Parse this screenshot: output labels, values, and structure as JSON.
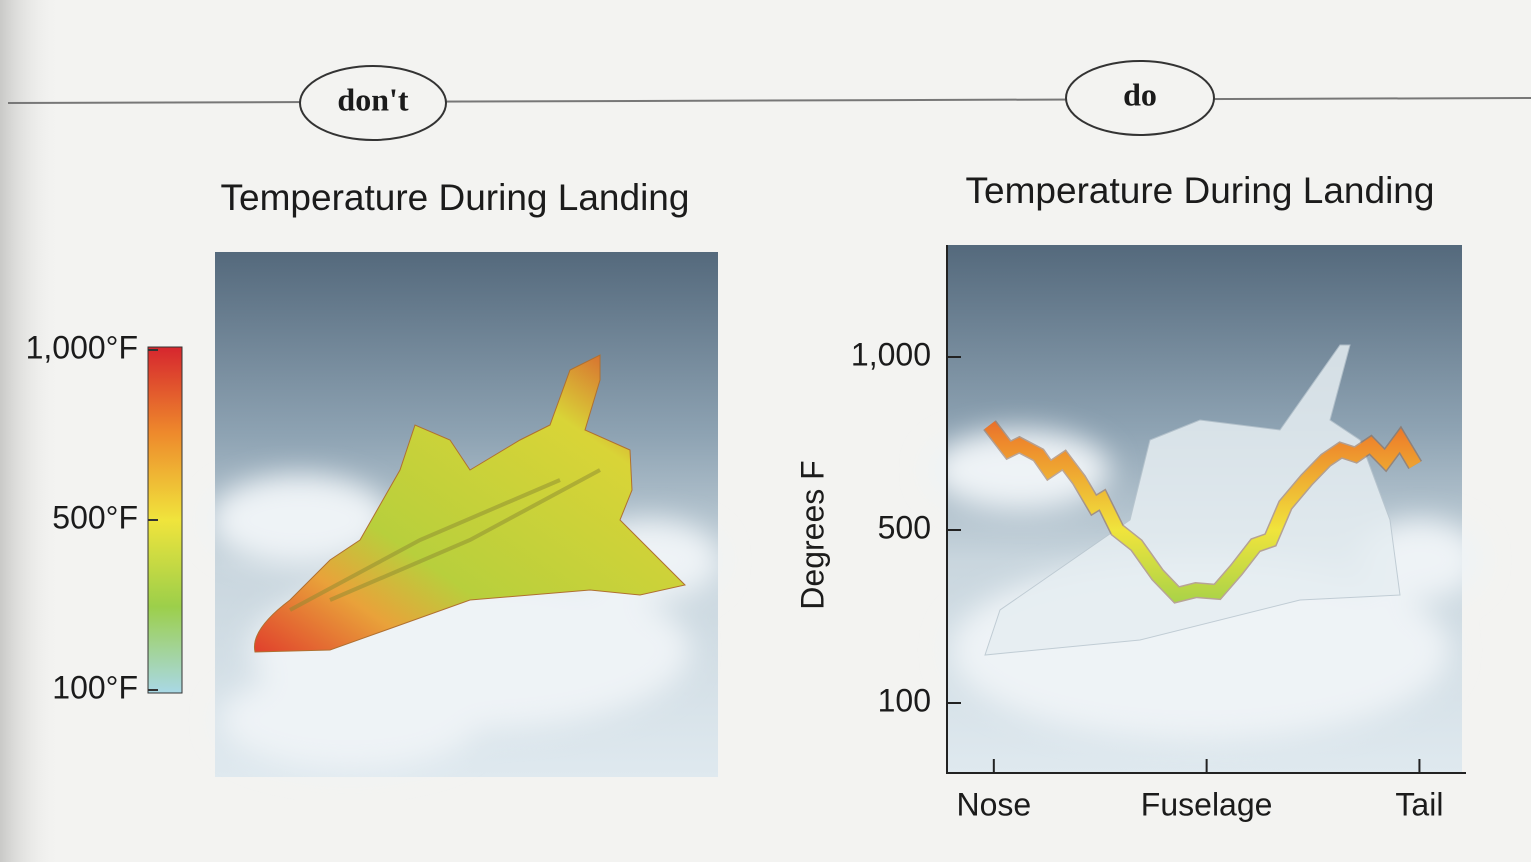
{
  "labels": [
    "don't",
    "do"
  ],
  "chart_data": [
    {
      "type": "colorbar",
      "title": "Temperature During Landing",
      "lim": [
        100,
        1000
      ],
      "ticks": [
        {
          "value": 1000,
          "label": "1,000°F"
        },
        {
          "value": 500,
          "label": "500°F"
        },
        {
          "value": 100,
          "label": "100°F"
        }
      ],
      "colormap": [
        "#a9d8e6",
        "#9ccf4a",
        "#f0e43c",
        "#ee8a2c",
        "#d6262e"
      ]
    },
    {
      "type": "line",
      "title": "Temperature During Landing",
      "y_label": "Degrees F",
      "x": [
        -0.02,
        0.07,
        0.12,
        0.21,
        0.26,
        0.33,
        0.4,
        0.47,
        0.51,
        0.58,
        0.67,
        0.77,
        0.86,
        0.95,
        1.05,
        1.14,
        1.23,
        1.3,
        1.37,
        1.47,
        1.56,
        1.63,
        1.7,
        1.77,
        1.84,
        1.91,
        1.98
      ],
      "values": [
        803,
        731,
        746,
        717,
        673,
        702,
        645,
        572,
        587,
        500,
        465,
        396,
        350,
        361,
        357,
        408,
        465,
        477,
        572,
        645,
        702,
        731,
        717,
        746,
        702,
        760,
        688
      ],
      "xlim": [
        -0.22,
        2.2
      ],
      "xticks": [
        {
          "value": 0,
          "label": "Nose"
        },
        {
          "value": 1,
          "label": "Fuselage"
        },
        {
          "value": 2,
          "label": "Tail"
        }
      ],
      "ylim": [
        -60,
        1320
      ],
      "yticks": [
        100,
        500,
        {
          "value": 1000,
          "label": "1,000"
        }
      ],
      "colormap": [
        "#a9d8e6",
        "#9ccf4a",
        "#f0e43c",
        "#ee8a2c",
        "#d6262e"
      ]
    }
  ]
}
